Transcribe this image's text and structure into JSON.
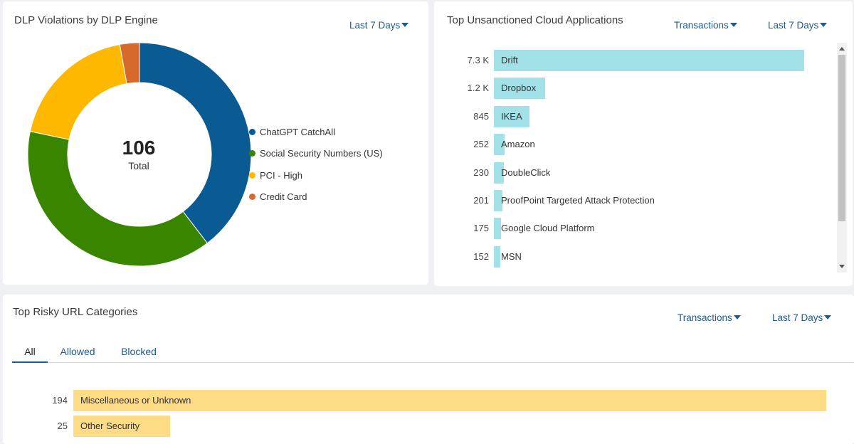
{
  "dlp_panel": {
    "title": "DLP Violations by DLP Engine",
    "time_filter": "Last 7 Days",
    "total_value": "106",
    "total_label": "Total",
    "chart_data": {
      "type": "pie",
      "categories": [
        "ChatGPT CatchAll",
        "Social Security Numbers (US)",
        "PCI - High",
        "Credit Card"
      ],
      "values": [
        42,
        41,
        20,
        3
      ],
      "colors": [
        "#0a5a93",
        "#3a8500",
        "#ffb800",
        "#d66a2a"
      ]
    }
  },
  "cloud_panel": {
    "title": "Top Unsanctioned Cloud Applications",
    "metric_filter": "Transactions",
    "time_filter": "Last 7 Days",
    "bar_color": "#a3e1e8",
    "chart_data": {
      "type": "bar",
      "orientation": "horizontal",
      "categories": [
        "Drift",
        "Dropbox",
        "IKEA",
        "Amazon",
        "DoubleClick",
        "ProofPoint Targeted Attack Protection",
        "Google Cloud Platform",
        "MSN"
      ],
      "values": [
        7300,
        1200,
        845,
        252,
        230,
        201,
        175,
        152
      ],
      "value_labels": [
        "7.3 K",
        "1.2 K",
        "845",
        "252",
        "230",
        "201",
        "175",
        "152"
      ]
    }
  },
  "url_panel": {
    "title": "Top Risky URL Categories",
    "metric_filter": "Transactions",
    "time_filter": "Last 7 Days",
    "tabs": [
      {
        "label": "All",
        "active": true
      },
      {
        "label": "Allowed",
        "active": false
      },
      {
        "label": "Blocked",
        "active": false
      }
    ],
    "bar_color": "#fedb85",
    "chart_data": {
      "type": "bar",
      "orientation": "horizontal",
      "categories": [
        "Miscellaneous or Unknown",
        "Other Security"
      ],
      "values": [
        194,
        25
      ],
      "value_labels": [
        "194",
        "25"
      ]
    }
  }
}
